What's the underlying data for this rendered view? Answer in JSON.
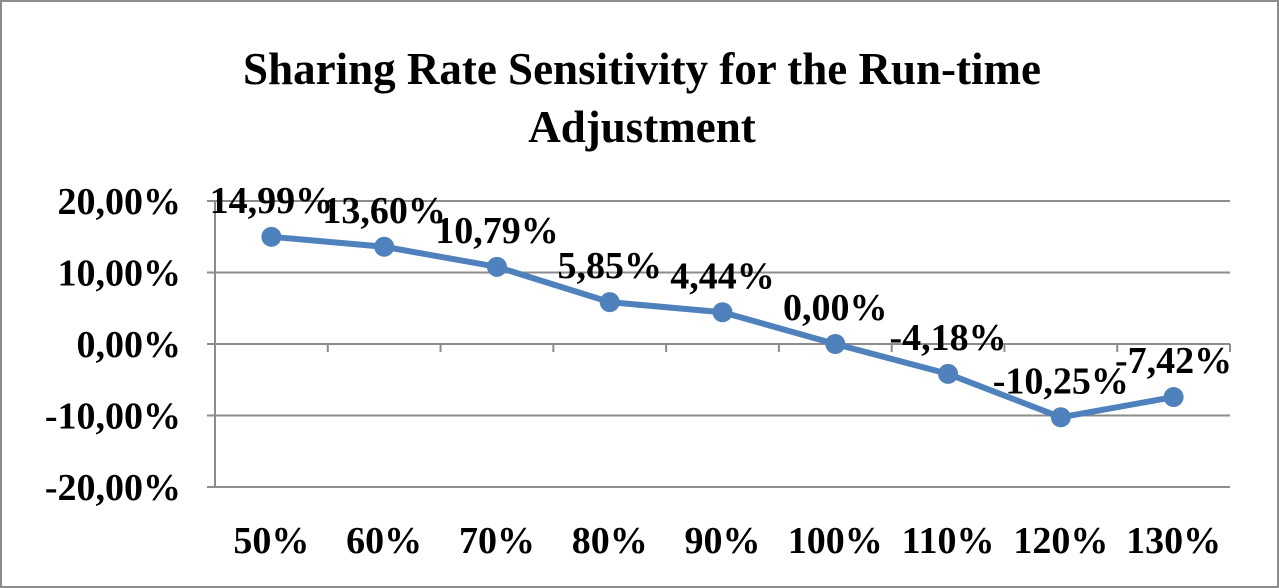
{
  "chart_data": {
    "type": "line",
    "title": "Sharing Rate Sensitivity for the Run-time Adjustment",
    "categories": [
      "50%",
      "60%",
      "70%",
      "80%",
      "90%",
      "100%",
      "110%",
      "120%",
      "130%"
    ],
    "series": [
      {
        "values": [
          14.99,
          13.6,
          10.79,
          5.85,
          4.44,
          0.0,
          -4.18,
          -10.25,
          -7.42
        ],
        "data_labels": [
          "14,99%",
          "13,60%",
          "10,79%",
          "5,85%",
          "4,44%",
          "0,00%",
          "-4,18%",
          "-10,25%",
          "-7,42%"
        ],
        "color": "#4f81bd"
      }
    ],
    "y_ticks": [
      20,
      10,
      0,
      -10,
      -20
    ],
    "y_tick_labels": [
      "20,00%",
      "10,00%",
      "0,00%",
      "-10,00%",
      "-20,00%"
    ],
    "ylim": [
      -20,
      20
    ],
    "grid": true,
    "gridline_color": "#8c8c8c",
    "legend": "none"
  }
}
